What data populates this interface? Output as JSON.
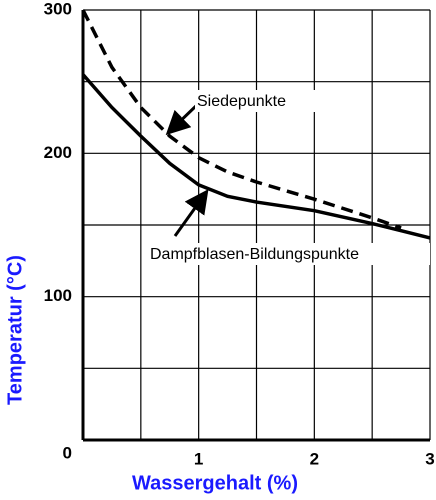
{
  "chart_data": {
    "type": "line",
    "x": [
      0,
      0.25,
      0.5,
      0.75,
      1,
      1.25,
      1.5,
      2,
      2.5,
      2.75,
      3
    ],
    "series": [
      {
        "name": "Siedepunkte",
        "color": "#000000",
        "dash": "dashed",
        "values": [
          300,
          260,
          232,
          212,
          197,
          187,
          180,
          168,
          155,
          148,
          null
        ]
      },
      {
        "name": "Dampfblasen-Bildungspunkte",
        "color": "#000000",
        "dash": "solid",
        "values": [
          255,
          232,
          212,
          193,
          178,
          170,
          166,
          160,
          151,
          146,
          141
        ]
      }
    ],
    "xlabel": "Wassergehalt (%)",
    "ylabel": "Temperatur (°C)",
    "xlim": [
      0,
      3
    ],
    "ylim": [
      0,
      300
    ],
    "xticks": [
      1,
      2,
      3
    ],
    "yticks": [
      0,
      100,
      200,
      300
    ],
    "xgrid": [
      0.5,
      1.5,
      2.5
    ],
    "ygrid": [
      50,
      150,
      250
    ],
    "grid": true
  }
}
